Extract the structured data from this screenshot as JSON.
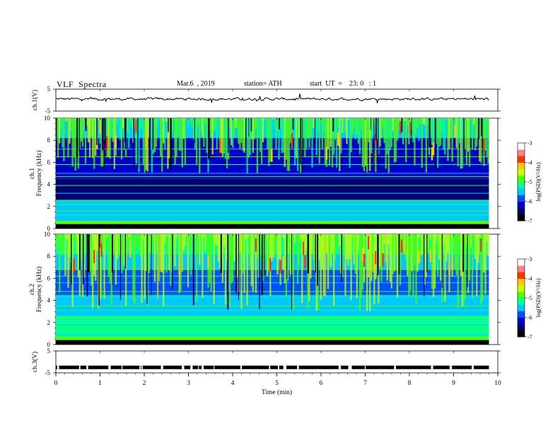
{
  "header": {
    "title": "VLF  Spectra",
    "date": "Mar.6  , 2019",
    "station": "station= ATH",
    "start": "start  UT  =    23: 0   : 1"
  },
  "chart_data": [
    {
      "type": "line",
      "panel": "ch1-waveform",
      "ylabel": "ch.1(V)",
      "yticks": [
        "5",
        "-5"
      ],
      "ylim": [
        -5,
        5
      ],
      "xlim": [
        0,
        10
      ],
      "x_extent": [
        0,
        9.8
      ],
      "mean": 0.5,
      "color": "#000000"
    },
    {
      "type": "heatmap",
      "panel": "ch1-spectrogram",
      "ylabel": "ch.1\nFrequency (kHz)",
      "ylabel_lines": [
        "ch.1",
        "Frequency (kHz)"
      ],
      "yticks": [
        "0",
        "2",
        "4",
        "6",
        "8",
        "10"
      ],
      "ylim": [
        0,
        10
      ],
      "xlim": [
        0,
        10
      ],
      "x_extent": [
        0,
        9.8
      ],
      "colorbar": {
        "label": "log(PSD)(V²/Hz)",
        "ticks": [
          "-3",
          "-4",
          "-5",
          "-6",
          "-7"
        ],
        "range": [
          -7,
          -3
        ]
      }
    },
    {
      "type": "heatmap",
      "panel": "ch2-spectrogram",
      "ylabel": "ch.2\nFrequency (kHz)",
      "ylabel_lines": [
        "ch.2",
        "Frequency (kHz)"
      ],
      "yticks": [
        "0",
        "2",
        "4",
        "6",
        "8",
        "10"
      ],
      "ylim": [
        0,
        10
      ],
      "xlim": [
        0,
        10
      ],
      "x_extent": [
        0,
        9.8
      ],
      "colorbar": {
        "label": "log(PSD)(V²/Hz)",
        "ticks": [
          "-3",
          "-4",
          "-5",
          "-6",
          "-7"
        ],
        "range": [
          -7,
          -3
        ]
      }
    },
    {
      "type": "line",
      "panel": "ch3-waveform",
      "ylabel": "ch.3(V)",
      "yticks": [
        "5",
        "-5"
      ],
      "ylim": [
        -5,
        5
      ],
      "xlim": [
        0,
        10
      ],
      "x_extent": [
        0,
        9.8
      ],
      "mean": -2.5,
      "color": "#000000"
    }
  ],
  "xaxis": {
    "label": "Time  (min)",
    "ticks": [
      "0",
      "1",
      "2",
      "3",
      "4",
      "5",
      "6",
      "7",
      "8",
      "9",
      "10"
    ]
  },
  "colormap": [
    "#000000",
    "#00006e",
    "#0000c8",
    "#0050ff",
    "#00c8ff",
    "#00ff96",
    "#50ff00",
    "#c8ff00",
    "#ffc800",
    "#ff3200",
    "#ff8282",
    "#ffffff"
  ]
}
